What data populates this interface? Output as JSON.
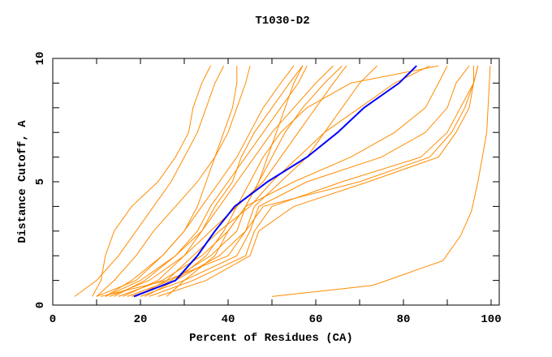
{
  "chart_data": {
    "type": "line",
    "title": "T1030-D2",
    "xlabel": "Percent of Residues (CA)",
    "ylabel": "Distance Cutoff, A",
    "xlim": [
      0,
      100
    ],
    "ylim": [
      0,
      10
    ],
    "xticks": [
      "0",
      "20",
      "40",
      "60",
      "80",
      "100"
    ],
    "yticks": [
      "0",
      "5",
      "10"
    ],
    "grid": false,
    "colors": {
      "highlight": "#0000ff",
      "others": "#ff8c00",
      "axes": "#000000"
    },
    "y": [
      0.35,
      1,
      2,
      3,
      4,
      5,
      6,
      7,
      8,
      9,
      9.7
    ],
    "highlight_series": {
      "x": [
        18.5,
        28,
        33,
        37,
        41.5,
        49,
        58,
        65,
        71,
        79,
        83
      ]
    },
    "series": [
      {
        "x": [
          5,
          10,
          15,
          19,
          23,
          27,
          30,
          33,
          35,
          37,
          39
        ]
      },
      {
        "x": [
          9,
          11,
          12,
          14,
          18,
          24,
          28,
          31,
          32,
          34,
          36
        ]
      },
      {
        "x": [
          10,
          14,
          19,
          23,
          28,
          33,
          37,
          40,
          42,
          44,
          45
        ]
      },
      {
        "x": [
          12,
          18,
          25,
          30,
          34,
          38,
          42,
          45,
          48,
          52,
          55
        ]
      },
      {
        "x": [
          14,
          21,
          28,
          33,
          36,
          40,
          44,
          48,
          52,
          56,
          58
        ]
      },
      {
        "x": [
          16,
          24,
          30,
          34,
          38,
          42,
          46,
          50,
          55,
          60,
          64
        ]
      },
      {
        "x": [
          13,
          22,
          30,
          36,
          42,
          48,
          52,
          56,
          60,
          64,
          67
        ]
      },
      {
        "x": [
          15,
          25,
          34,
          40,
          44,
          47,
          50,
          53,
          57,
          62,
          66
        ]
      },
      {
        "x": [
          18,
          28,
          38,
          44,
          46,
          52,
          58,
          62,
          66,
          70,
          74
        ]
      },
      {
        "x": [
          20,
          30,
          42,
          45,
          47,
          58,
          75,
          85,
          90,
          92,
          95
        ]
      },
      {
        "x": [
          22,
          32,
          44,
          46,
          50,
          66,
          84,
          90,
          93,
          96,
          97
        ]
      },
      {
        "x": [
          11,
          26,
          40,
          44,
          48,
          70,
          86,
          91,
          94,
          96,
          96
        ]
      },
      {
        "x": [
          24,
          35,
          45,
          47,
          55,
          72,
          88,
          92,
          95,
          96,
          97
        ]
      },
      {
        "x": [
          17,
          27,
          36,
          42,
          44,
          55,
          68,
          78,
          85,
          88,
          90
        ]
      },
      {
        "x": [
          19,
          26,
          32,
          38,
          45,
          50,
          56,
          62,
          70,
          78,
          86
        ]
      },
      {
        "x": [
          21,
          28,
          35,
          39,
          42,
          45,
          48,
          52,
          58,
          68,
          88
        ]
      },
      {
        "x": [
          26,
          30,
          37,
          40,
          44,
          47,
          49,
          51,
          53,
          55,
          57
        ]
      },
      {
        "x": [
          12,
          20,
          28,
          34,
          37,
          41,
          43,
          46,
          50,
          54,
          57
        ]
      },
      {
        "x": [
          10,
          19,
          25,
          30,
          33,
          35,
          37,
          39,
          41,
          42,
          42
        ]
      },
      {
        "x": [
          50,
          73,
          89,
          93,
          95.5,
          97,
          98,
          99,
          99.3,
          99.6,
          99.8
        ],
        "y": [
          0.35,
          0.8,
          1.8,
          2.8,
          3.8,
          5,
          6,
          7,
          8,
          9,
          9.7
        ]
      }
    ]
  }
}
